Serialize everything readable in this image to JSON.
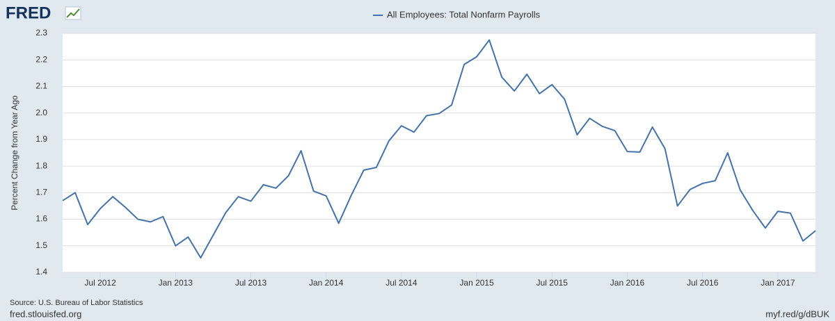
{
  "logo": "FRED",
  "chart_data": {
    "type": "line",
    "legend_label": "All Employees: Total Nonfarm Payrolls",
    "y_label": "Percent Change from Year Ago",
    "source": "Source: U.S. Bureau of Labor Statistics",
    "site": "fred.stlouisfed.org",
    "link": "myf.red/g/dBUK",
    "x": [
      "2012-04",
      "2012-05",
      "2012-06",
      "2012-07",
      "2012-08",
      "2012-09",
      "2012-10",
      "2012-11",
      "2012-12",
      "2013-01",
      "2013-02",
      "2013-03",
      "2013-04",
      "2013-05",
      "2013-06",
      "2013-07",
      "2013-08",
      "2013-09",
      "2013-10",
      "2013-11",
      "2013-12",
      "2014-01",
      "2014-02",
      "2014-03",
      "2014-04",
      "2014-05",
      "2014-06",
      "2014-07",
      "2014-08",
      "2014-09",
      "2014-10",
      "2014-11",
      "2014-12",
      "2015-01",
      "2015-02",
      "2015-03",
      "2015-04",
      "2015-05",
      "2015-06",
      "2015-07",
      "2015-08",
      "2015-09",
      "2015-10",
      "2015-11",
      "2015-12",
      "2016-01",
      "2016-02",
      "2016-03",
      "2016-04",
      "2016-05",
      "2016-06",
      "2016-07",
      "2016-08",
      "2016-09",
      "2016-10",
      "2016-11",
      "2016-12",
      "2017-01",
      "2017-02",
      "2017-03",
      "2017-04"
    ],
    "series": [
      {
        "name": "All Employees: Total Nonfarm Payrolls",
        "color": "#4572a7",
        "values": [
          1.67,
          1.7,
          1.58,
          1.64,
          1.685,
          1.645,
          1.6,
          1.59,
          1.61,
          1.5,
          1.533,
          1.455,
          1.54,
          1.625,
          1.685,
          1.668,
          1.73,
          1.717,
          1.764,
          1.858,
          1.706,
          1.688,
          1.585,
          1.69,
          1.785,
          1.795,
          1.895,
          1.952,
          1.928,
          1.99,
          1.998,
          2.03,
          2.183,
          2.212,
          2.275,
          2.135,
          2.083,
          2.146,
          2.073,
          2.107,
          2.052,
          1.918,
          1.98,
          1.95,
          1.934,
          1.855,
          1.853,
          1.947,
          1.866,
          1.65,
          1.712,
          1.735,
          1.745,
          1.85,
          1.71,
          1.633,
          1.567,
          1.63,
          1.623,
          1.518,
          1.557
        ]
      }
    ],
    "ylim": [
      1.4,
      2.3
    ],
    "yticks": [
      1.4,
      1.5,
      1.6,
      1.7,
      1.8,
      1.9,
      {
        "value": 2,
        "label": "2.0"
      },
      2.1,
      2.2,
      2.3
    ],
    "xticks": [
      {
        "value": "2012-07",
        "label": "Jul 2012"
      },
      {
        "value": "2013-01",
        "label": "Jan 2013"
      },
      {
        "value": "2013-07",
        "label": "Jul 2013"
      },
      {
        "value": "2014-01",
        "label": "Jan 2014"
      },
      {
        "value": "2014-07",
        "label": "Jul 2014"
      },
      {
        "value": "2015-01",
        "label": "Jan 2015"
      },
      {
        "value": "2015-07",
        "label": "Jul 2015"
      },
      {
        "value": "2016-01",
        "label": "Jan 2016"
      },
      {
        "value": "2016-07",
        "label": "Jul 2016"
      },
      {
        "value": "2017-01",
        "label": "Jan 2017"
      }
    ],
    "grid": true
  }
}
